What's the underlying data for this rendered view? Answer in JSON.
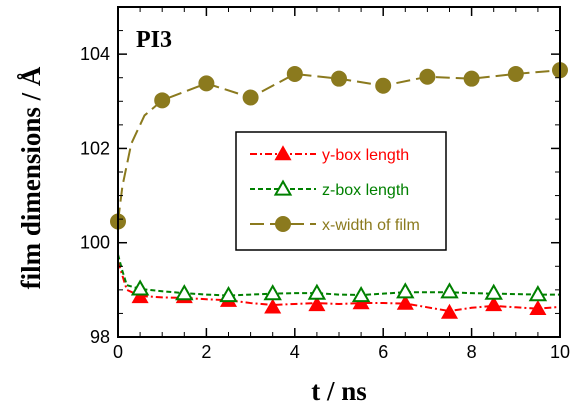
{
  "chart_data": {
    "type": "line",
    "panel_label": "PI3",
    "xlabel": "t / ns",
    "ylabel": "film dimensions / Å",
    "xlim": [
      0,
      10
    ],
    "ylim": [
      98,
      105
    ],
    "xticks": [
      0,
      2,
      4,
      6,
      8,
      10
    ],
    "yticks": [
      98,
      100,
      102,
      104
    ],
    "x_minor_step": 0.5,
    "y_minor_step": 0.5,
    "grid": false,
    "legend_position": "center",
    "series": [
      {
        "name": "y-box length",
        "color": "#ff0000",
        "marker": "filled-triangle",
        "line_style": "dash-dot",
        "markers": {
          "x": [
            0.5,
            1.5,
            2.5,
            3.5,
            4.5,
            5.5,
            6.5,
            7.5,
            8.5,
            9.5
          ],
          "y": [
            98.85,
            98.85,
            98.77,
            98.63,
            98.68,
            98.72,
            98.71,
            98.52,
            98.68,
            98.6
          ]
        },
        "line": {
          "x": [
            0,
            0.1,
            0.2,
            0.5,
            1,
            1.5,
            2,
            2.5,
            3,
            3.5,
            4,
            4.5,
            5,
            5.5,
            6,
            6.5,
            7,
            7.5,
            8,
            8.5,
            9,
            9.5,
            10
          ],
          "y": [
            99.6,
            99.3,
            99.0,
            98.87,
            98.84,
            98.83,
            98.8,
            98.78,
            98.72,
            98.68,
            98.7,
            98.72,
            98.7,
            98.72,
            98.72,
            98.71,
            98.63,
            98.55,
            98.62,
            98.66,
            98.63,
            98.6,
            98.64
          ]
        }
      },
      {
        "name": "z-box length",
        "color": "#008000",
        "marker": "open-triangle",
        "line_style": "dashed",
        "markers": {
          "x": [
            0.5,
            1.5,
            2.5,
            3.5,
            4.5,
            5.5,
            6.5,
            7.5,
            8.5,
            9.5
          ],
          "y": [
            99.02,
            98.92,
            98.88,
            98.92,
            98.93,
            98.88,
            98.96,
            98.96,
            98.93,
            98.9
          ]
        },
        "line": {
          "x": [
            0,
            0.1,
            0.2,
            0.5,
            1,
            1.5,
            2,
            2.5,
            3,
            3.5,
            4,
            4.5,
            5,
            5.5,
            6,
            6.5,
            7,
            7.5,
            8,
            8.5,
            9,
            9.5,
            10
          ],
          "y": [
            99.75,
            99.4,
            99.1,
            99.02,
            98.97,
            98.93,
            98.9,
            98.88,
            98.9,
            98.92,
            98.93,
            98.93,
            98.9,
            98.89,
            98.92,
            98.95,
            98.95,
            98.95,
            98.93,
            98.92,
            98.91,
            98.9,
            98.9
          ]
        }
      },
      {
        "name": "x-width of film",
        "color": "#8b7a1e",
        "marker": "filled-circle",
        "line_style": "long-dash",
        "markers": {
          "x": [
            0,
            1,
            2,
            3,
            4,
            5,
            6,
            7,
            8,
            9,
            10
          ],
          "y": [
            100.45,
            103.02,
            103.38,
            103.08,
            103.58,
            103.48,
            103.33,
            103.52,
            103.48,
            103.58,
            103.66
          ]
        },
        "line": {
          "x": [
            0,
            0.1,
            0.3,
            0.6,
            1,
            2,
            3,
            4,
            5,
            6,
            7,
            8,
            9,
            10
          ],
          "y": [
            100.45,
            101.2,
            102.1,
            102.7,
            103.02,
            103.38,
            103.08,
            103.58,
            103.48,
            103.33,
            103.52,
            103.48,
            103.58,
            103.66
          ]
        }
      }
    ]
  }
}
